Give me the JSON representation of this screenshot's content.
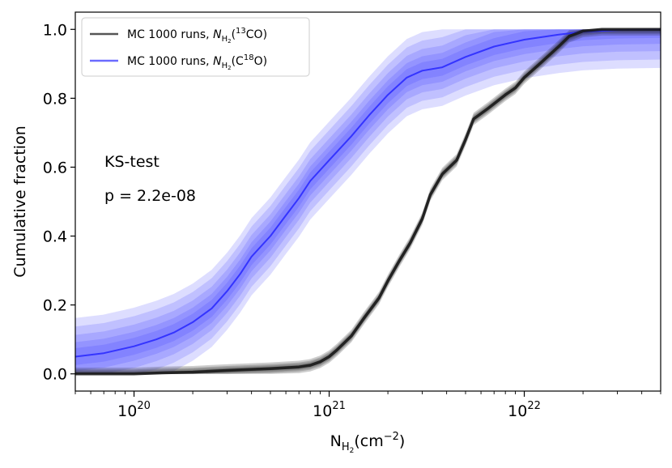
{
  "chart_data": {
    "type": "line",
    "x_scale": "log",
    "xlim": [
      5e+19,
      5e+22
    ],
    "ylim": [
      -0.05,
      1.05
    ],
    "xlabel": "N",
    "xlabel_sub": "H",
    "xlabel_subsub": "2",
    "xlabel_unit_prefix": "(cm",
    "xlabel_unit_exp": "−2",
    "xlabel_unit_suffix": ")",
    "ylabel": "Cumulative fraction",
    "y_ticks": [
      0.0,
      0.2,
      0.4,
      0.6,
      0.8,
      1.0
    ],
    "y_tick_labels": [
      "0.0",
      "0.2",
      "0.4",
      "0.6",
      "0.8",
      "1.0"
    ],
    "x_major_ticks": [
      1e+20,
      1e+21,
      1e+22
    ],
    "x_tick_base": "10",
    "x_tick_exponents": [
      "20",
      "21",
      "22"
    ],
    "legend": {
      "placement": "top-left",
      "entries": [
        {
          "label_prefix": "MC 1000 runs, ",
          "italic": "N",
          "sub": "H",
          "subsub": "2",
          "mid": "(",
          "sup": "13",
          "suffix": "CO)",
          "color": "#555555"
        },
        {
          "label_prefix": "MC 1000 runs, ",
          "italic": "N",
          "sub": "H",
          "subsub": "2",
          "mid": "(C",
          "sup": "18",
          "suffix": "O)",
          "color": "#6b6bff"
        }
      ]
    },
    "annotations": {
      "test_name": "KS-test",
      "p_value": "p = 2.2e-08"
    },
    "series": [
      {
        "name": "C18O",
        "color": "#2b2bff",
        "band_halfwidth": 0.07,
        "x": [
          5e+19,
          7e+19,
          1e+20,
          1.3e+20,
          1.6e+20,
          2e+20,
          2.5e+20,
          3e+20,
          3.5e+20,
          4e+20,
          5e+20,
          6e+20,
          7e+20,
          8e+20,
          1e+21,
          1.3e+21,
          1.6e+21,
          2e+21,
          2.5e+21,
          3e+21,
          3.8e+21,
          5e+21,
          7e+21,
          1e+22,
          1.5e+22,
          2e+22,
          3e+22,
          5e+22
        ],
        "y": [
          0.05,
          0.06,
          0.08,
          0.1,
          0.12,
          0.15,
          0.19,
          0.24,
          0.29,
          0.34,
          0.4,
          0.46,
          0.51,
          0.56,
          0.62,
          0.69,
          0.75,
          0.81,
          0.86,
          0.88,
          0.89,
          0.92,
          0.95,
          0.97,
          0.985,
          0.993,
          0.998,
          1.0
        ]
      },
      {
        "name": "13CO",
        "color": "#1a1a1a",
        "band_halfwidth": 0.01,
        "x": [
          5e+19,
          1e+20,
          1.4e+20,
          2e+20,
          3e+20,
          5e+20,
          7e+20,
          8e+20,
          9e+20,
          1e+21,
          1.1e+21,
          1.3e+21,
          1.5e+21,
          1.8e+21,
          2e+21,
          2.3e+21,
          2.6e+21,
          3e+21,
          3.3e+21,
          3.8e+21,
          4.5e+21,
          5e+21,
          5.5e+21,
          6.5e+21,
          8e+21,
          9e+21,
          1e+22,
          1.2e+22,
          1.5e+22,
          1.7e+22,
          2e+22,
          2.5e+22,
          3e+22,
          5e+22
        ],
        "y": [
          0.0,
          0.0,
          0.003,
          0.005,
          0.01,
          0.015,
          0.02,
          0.025,
          0.035,
          0.05,
          0.07,
          0.11,
          0.16,
          0.22,
          0.27,
          0.33,
          0.38,
          0.45,
          0.52,
          0.58,
          0.62,
          0.68,
          0.74,
          0.77,
          0.81,
          0.83,
          0.86,
          0.9,
          0.95,
          0.98,
          0.995,
          1.0,
          1.0,
          1.0
        ]
      }
    ]
  }
}
